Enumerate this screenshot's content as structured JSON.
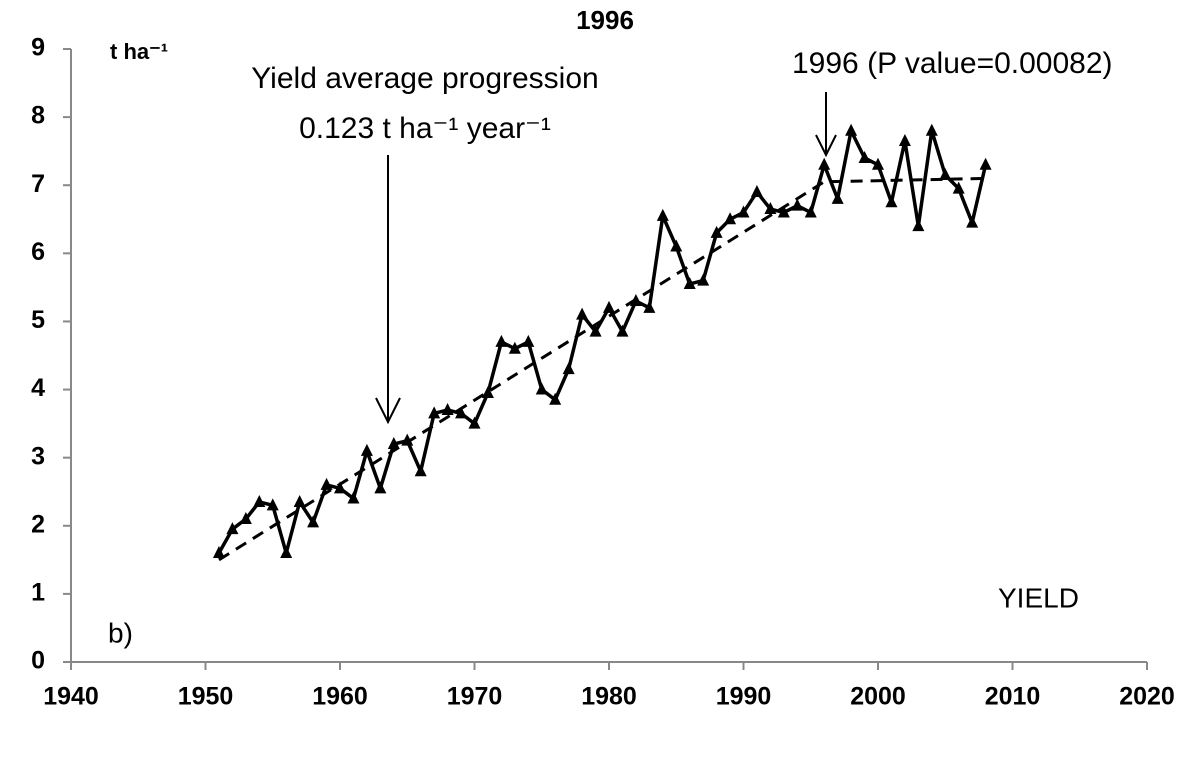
{
  "chart_data": {
    "type": "line",
    "title": "1996",
    "y_label": "t ha⁻¹",
    "annotations": [
      "Yield average progression",
      "0.123 t ha⁻¹ year⁻¹",
      "1996 (P value=0.00082)",
      "YIELD",
      "b)"
    ],
    "x": [
      1951,
      1952,
      1953,
      1954,
      1955,
      1956,
      1957,
      1958,
      1959,
      1960,
      1961,
      1962,
      1963,
      1964,
      1965,
      1966,
      1967,
      1968,
      1969,
      1970,
      1971,
      1972,
      1973,
      1974,
      1975,
      1976,
      1977,
      1978,
      1979,
      1980,
      1981,
      1982,
      1983,
      1984,
      1985,
      1986,
      1987,
      1988,
      1989,
      1990,
      1991,
      1992,
      1993,
      1994,
      1995,
      1996,
      1997,
      1998,
      1999,
      2000,
      2001,
      2002,
      2003,
      2004,
      2005,
      2006,
      2007,
      2008
    ],
    "series": [
      {
        "color": "#000000",
        "values": [
          1.6,
          1.95,
          2.1,
          2.35,
          2.3,
          1.6,
          2.35,
          2.05,
          2.6,
          2.55,
          2.4,
          3.1,
          2.55,
          3.2,
          3.25,
          2.8,
          3.65,
          3.7,
          3.65,
          3.5,
          3.95,
          4.7,
          4.6,
          4.7,
          4.0,
          3.85,
          4.3,
          5.1,
          4.85,
          5.2,
          4.85,
          5.3,
          5.2,
          6.55,
          6.1,
          5.55,
          5.6,
          6.3,
          6.5,
          6.6,
          6.9,
          6.65,
          6.6,
          6.7,
          6.6,
          7.3,
          6.8,
          7.8,
          7.4,
          7.3,
          6.75,
          7.65,
          6.4,
          7.8,
          7.15,
          6.95,
          6.45,
          7.3
        ]
      }
    ],
    "trend": {
      "x": [
        1951,
        1996,
        2008
      ],
      "values": [
        1.5,
        7.05,
        7.1
      ]
    },
    "xlim": [
      1940,
      2020
    ],
    "xticks": [
      1940,
      1950,
      1960,
      1970,
      1980,
      1990,
      2000,
      2010,
      2020
    ],
    "ylim": [
      0,
      9
    ],
    "yticks": [
      0,
      1,
      2,
      3,
      4,
      5,
      6,
      7,
      8,
      9
    ],
    "title_color": "#e8a317",
    "grid": false
  }
}
